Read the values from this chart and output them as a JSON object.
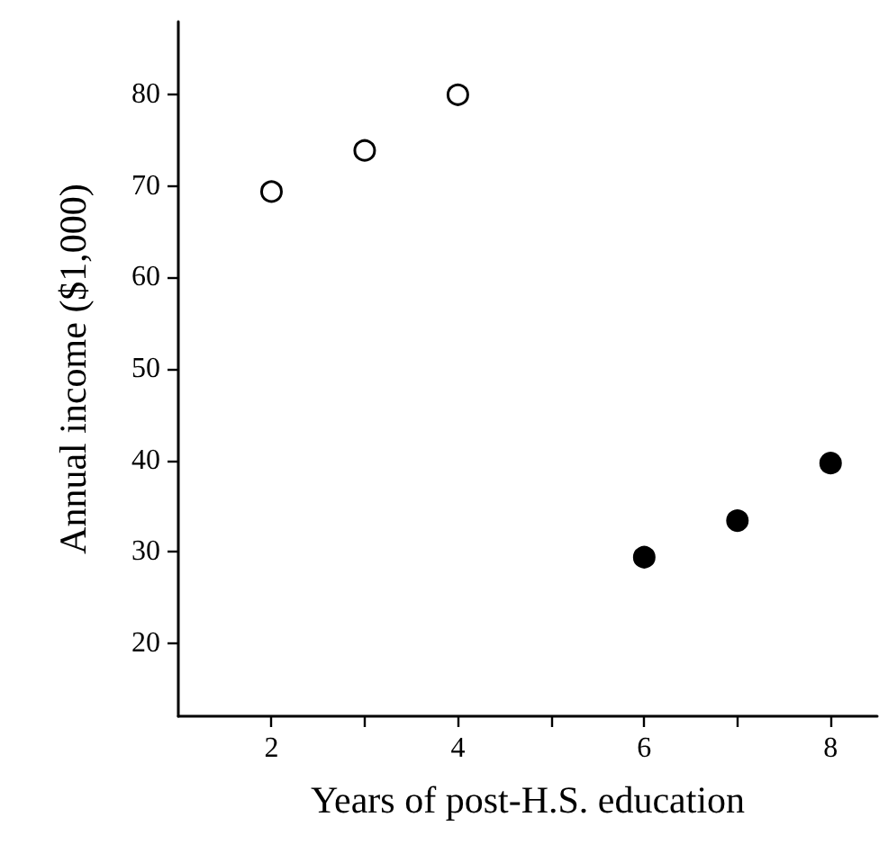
{
  "chart_data": {
    "type": "scatter",
    "xlabel": "Years of post-H.S. education",
    "ylabel": "Annual income ($1,000)",
    "series": [
      {
        "x": [
          2,
          3,
          4
        ],
        "values": [
          69.4,
          73.9,
          80
        ],
        "color": "#ffffff"
      },
      {
        "x": [
          6,
          7,
          8
        ],
        "values": [
          29.4,
          33.4,
          39.7
        ],
        "color": "#000000"
      }
    ],
    "xlim": [
      1,
      8.5
    ],
    "xticks": [
      2,
      {
        "value": 3,
        "label": null
      },
      4,
      {
        "value": 5,
        "label": null
      },
      6,
      {
        "value": 7,
        "label": null
      },
      8
    ],
    "ylim": [
      12,
      88
    ],
    "yticks": [
      20,
      30,
      40,
      50,
      60,
      70,
      80
    ],
    "marker": "circle"
  }
}
